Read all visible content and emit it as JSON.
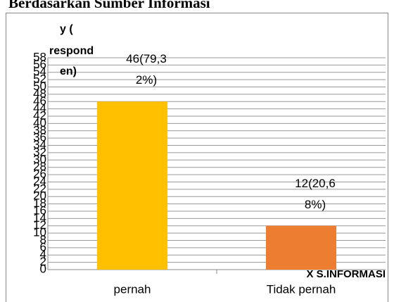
{
  "chart_data": {
    "type": "bar",
    "title": "Berdasarkan Sumber  Informasi",
    "y_label_lines": [
      "y (",
      "respond",
      "en)"
    ],
    "x_label": "X S.INFORMASI",
    "categories": [
      "pernah",
      "Tidak pernah"
    ],
    "values": [
      46,
      12
    ],
    "value_labels": [
      "46(79,32%)",
      "12(20,68%)"
    ],
    "colors": [
      "#ffc000",
      "#ed7d31"
    ],
    "ylim": [
      0,
      58
    ],
    "yticks": [
      0,
      2,
      4,
      6,
      8,
      10,
      12,
      14,
      16,
      18,
      20,
      22,
      24,
      26,
      28,
      30,
      32,
      34,
      36,
      38,
      40,
      42,
      44,
      46,
      48,
      50,
      52,
      54,
      56,
      58
    ],
    "grid": true
  }
}
